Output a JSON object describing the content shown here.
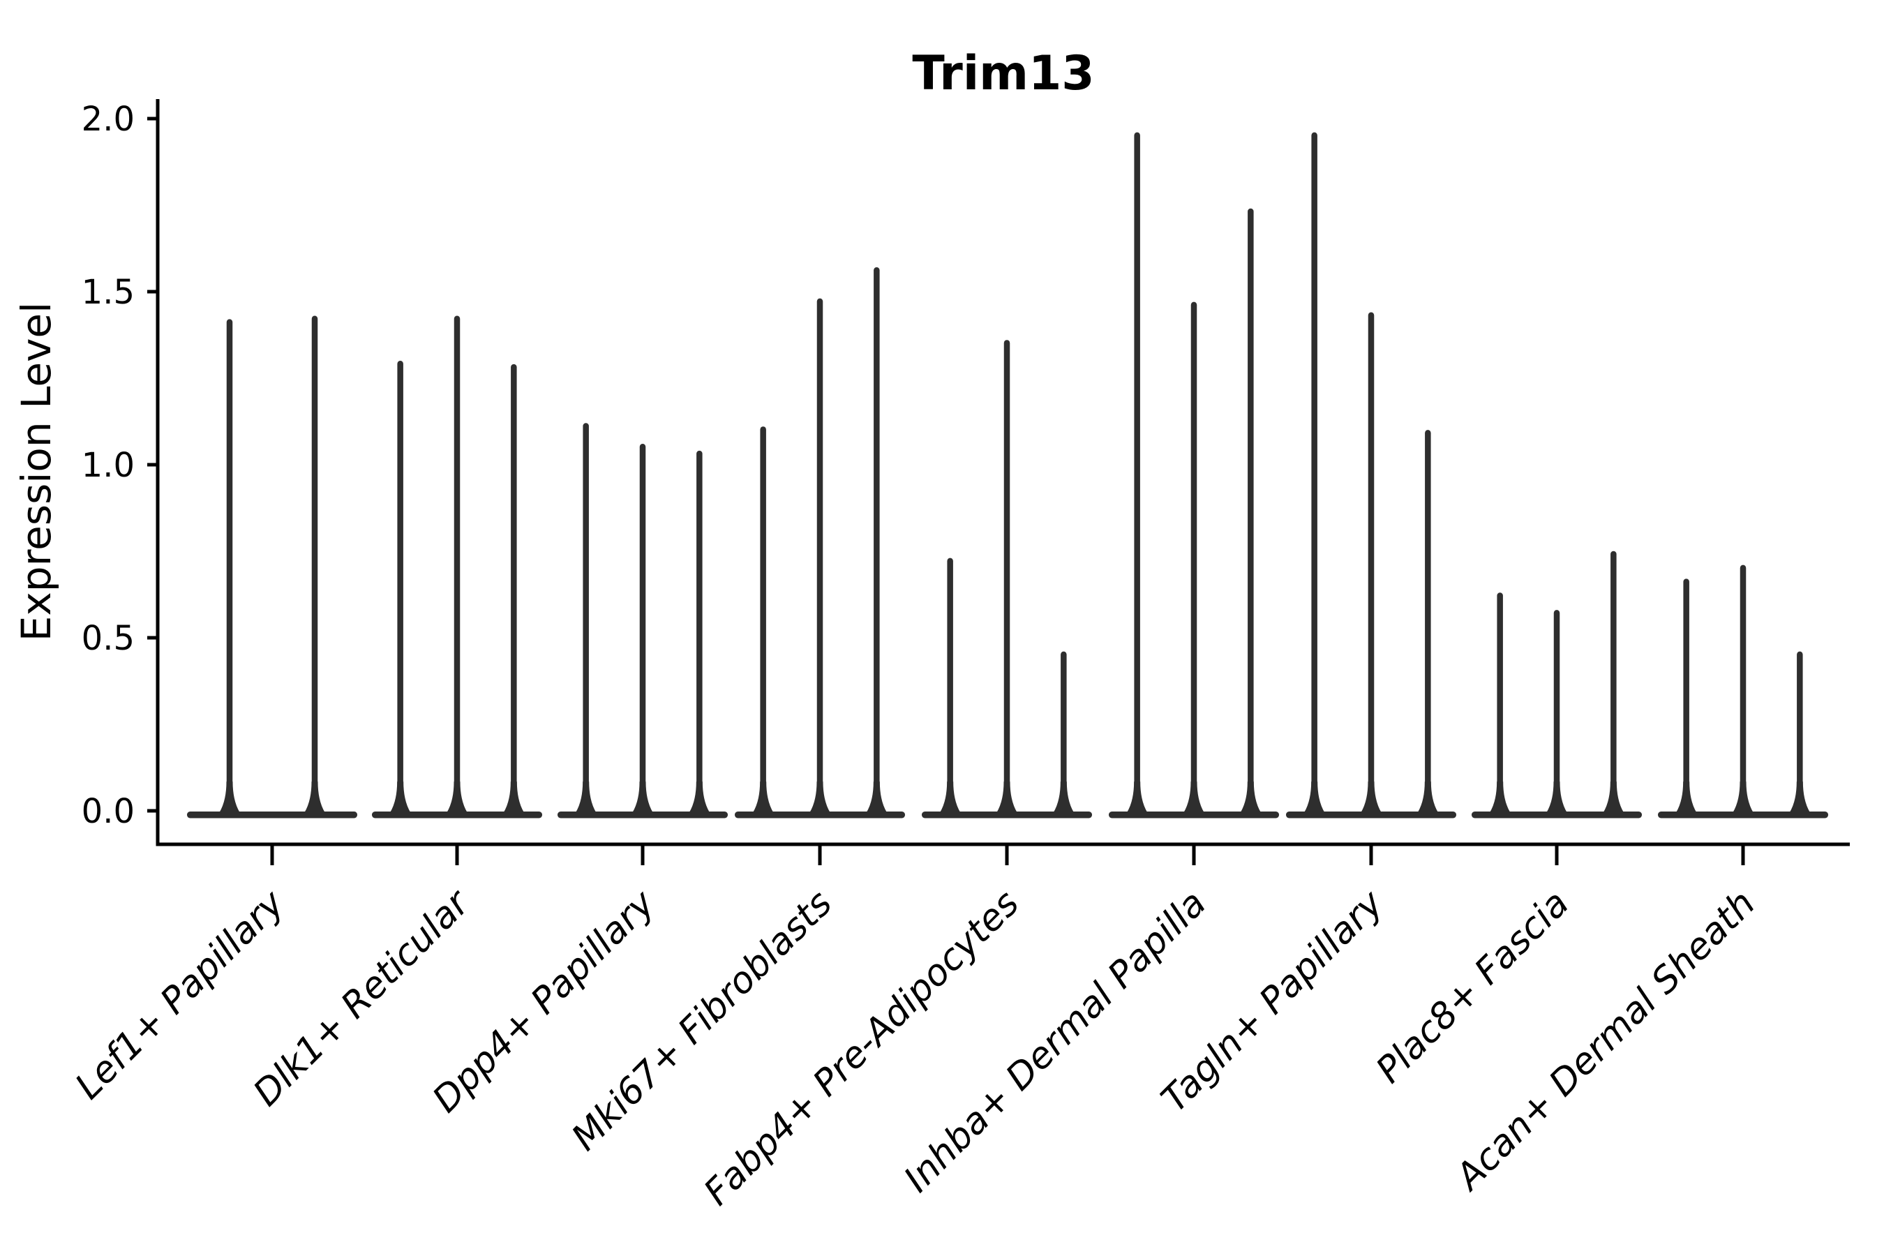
{
  "chart_data": {
    "type": "violin",
    "title": "Trim13",
    "ylabel": "Expression Level",
    "ylim": [
      0,
      2
    ],
    "ytick_labels": [
      "0.0",
      "0.5",
      "1.0",
      "1.5",
      "2.0"
    ],
    "grid": false,
    "legend": "none",
    "violin_color": "#2e2e2e",
    "axis_color": "#000000",
    "groups": [
      {
        "label": "Lef1+ Papillary",
        "violin_maxima": [
          1.42,
          1.43
        ]
      },
      {
        "label": "Dlk1+ Reticular",
        "violin_maxima": [
          1.3,
          1.43,
          1.29
        ]
      },
      {
        "label": "Dpp4+ Papillary",
        "violin_maxima": [
          1.12,
          1.06,
          1.04
        ]
      },
      {
        "label": "Mki67+ Fibroblasts",
        "violin_maxima": [
          1.11,
          1.48,
          1.57
        ]
      },
      {
        "label": "Fabp4+ Pre-Adipocytes",
        "violin_maxima": [
          0.73,
          1.36,
          0.46
        ]
      },
      {
        "label": "Inhba+ Dermal Papilla",
        "violin_maxima": [
          1.96,
          1.47,
          1.74
        ]
      },
      {
        "label": "Tagln+ Papillary",
        "violin_maxima": [
          1.96,
          1.44,
          1.1
        ]
      },
      {
        "label": "Plac8+ Fascia",
        "violin_maxima": [
          0.63,
          0.58,
          0.75
        ]
      },
      {
        "label": "Acan+ Dermal Sheath",
        "violin_maxima": [
          0.67,
          0.71,
          0.46
        ]
      }
    ]
  }
}
